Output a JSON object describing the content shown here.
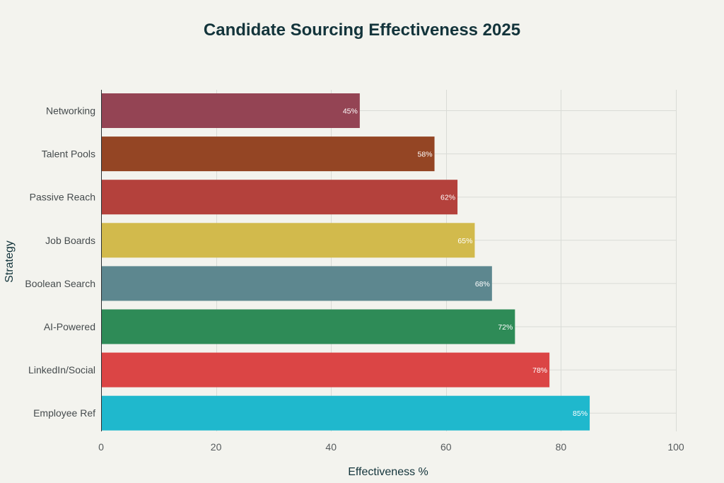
{
  "chart_data": {
    "type": "bar",
    "orientation": "horizontal",
    "title": "Candidate Sourcing Effectiveness 2025",
    "xlabel": "Effectiveness %",
    "ylabel": "Strategy",
    "xlim": [
      0,
      100
    ],
    "xticks": [
      0,
      20,
      40,
      60,
      80,
      100
    ],
    "grid": true,
    "categories": [
      "Networking",
      "Talent Pools",
      "Passive Reach",
      "Job Boards",
      "Boolean Search",
      "AI-Powered",
      "LinkedIn/Social",
      "Employee Ref"
    ],
    "values": [
      45,
      58,
      62,
      65,
      68,
      72,
      78,
      85
    ],
    "data_labels": [
      "45%",
      "58%",
      "62%",
      "65%",
      "68%",
      "72%",
      "78%",
      "85%"
    ],
    "colors": [
      "#944454",
      "#944524",
      "#b4413c",
      "#d2ba4c",
      "#5d878f",
      "#2e8b57",
      "#db4545",
      "#1fb8cd"
    ]
  }
}
